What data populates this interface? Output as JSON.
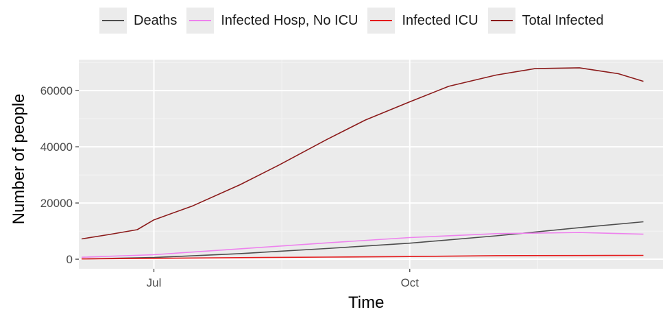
{
  "chart_data": {
    "type": "line",
    "xlabel": "Time",
    "ylabel": "Number of people",
    "x_axis": {
      "type": "date",
      "range": [
        "2020-06-04",
        "2020-12-31"
      ],
      "ticks": [
        {
          "value": "2020-07-01",
          "label": "Jul"
        },
        {
          "value": "2020-10-01",
          "label": "Oct"
        }
      ]
    },
    "y_axis": {
      "range": [
        -3400,
        71000
      ],
      "ticks": [
        0,
        20000,
        40000,
        60000
      ],
      "tick_labels": [
        "0",
        "20000",
        "40000",
        "60000"
      ]
    },
    "grid": true,
    "legend_position": "top",
    "background": "#ebebeb",
    "series": [
      {
        "name": "Deaths",
        "color": "#4d4d4d",
        "points": [
          [
            "2020-06-05",
            100
          ],
          [
            "2020-07-01",
            600
          ],
          [
            "2020-08-01",
            2000
          ],
          [
            "2020-09-01",
            3800
          ],
          [
            "2020-10-01",
            5700
          ],
          [
            "2020-11-01",
            8300
          ],
          [
            "2020-12-01",
            11200
          ],
          [
            "2020-12-24",
            13300
          ]
        ]
      },
      {
        "name": "Infected Hosp, No ICU",
        "color": "#ee82ee",
        "points": [
          [
            "2020-06-05",
            700
          ],
          [
            "2020-07-01",
            1600
          ],
          [
            "2020-08-01",
            3700
          ],
          [
            "2020-09-01",
            5800
          ],
          [
            "2020-10-01",
            7700
          ],
          [
            "2020-11-01",
            9100
          ],
          [
            "2020-12-01",
            9500
          ],
          [
            "2020-12-24",
            8900
          ]
        ]
      },
      {
        "name": "Infected ICU",
        "color": "#e41a1c",
        "points": [
          [
            "2020-06-05",
            100
          ],
          [
            "2020-07-01",
            300
          ],
          [
            "2020-08-01",
            550
          ],
          [
            "2020-09-01",
            750
          ],
          [
            "2020-10-01",
            950
          ],
          [
            "2020-11-01",
            1250
          ],
          [
            "2020-12-01",
            1300
          ],
          [
            "2020-12-24",
            1350
          ]
        ]
      },
      {
        "name": "Total Infected",
        "color": "#8b1a1a",
        "points": [
          [
            "2020-06-05",
            7200
          ],
          [
            "2020-06-15",
            8800
          ],
          [
            "2020-06-25",
            10500
          ],
          [
            "2020-07-01",
            14000
          ],
          [
            "2020-07-15",
            19000
          ],
          [
            "2020-08-01",
            26500
          ],
          [
            "2020-08-15",
            33500
          ],
          [
            "2020-09-01",
            42500
          ],
          [
            "2020-09-15",
            49500
          ],
          [
            "2020-10-01",
            56000
          ],
          [
            "2020-10-15",
            61500
          ],
          [
            "2020-11-01",
            65500
          ],
          [
            "2020-11-15",
            67800
          ],
          [
            "2020-12-01",
            68100
          ],
          [
            "2020-12-15",
            66000
          ],
          [
            "2020-12-24",
            63300
          ]
        ]
      }
    ]
  }
}
